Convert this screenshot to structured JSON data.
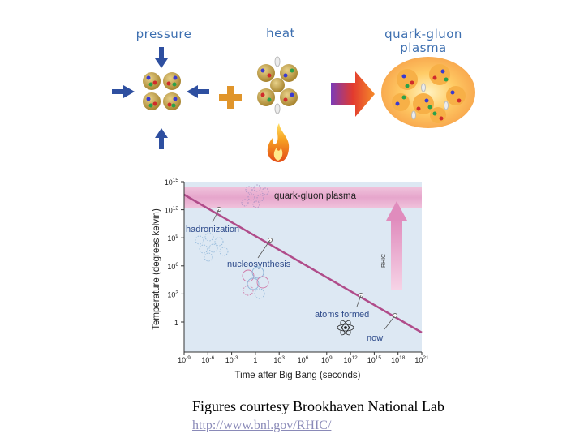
{
  "illustration": {
    "labels": {
      "pressure": "pressure",
      "heat": "heat",
      "qgp": "quark-gluon\nplasma"
    }
  },
  "chart": {
    "ylabel": "Temperature (degrees kelvin)",
    "xlabel": "Time after Big Bang (seconds)",
    "y_ticks": [
      {
        "base": "10",
        "exp": "15"
      },
      {
        "base": "10",
        "exp": "12"
      },
      {
        "base": "10",
        "exp": "9"
      },
      {
        "base": "10",
        "exp": "6"
      },
      {
        "base": "10",
        "exp": "3"
      },
      {
        "base": "1",
        "exp": ""
      }
    ],
    "x_ticks": [
      {
        "base": "10",
        "exp": "-9"
      },
      {
        "base": "10",
        "exp": "-6"
      },
      {
        "base": "10",
        "exp": "-3"
      },
      {
        "base": "1",
        "exp": ""
      },
      {
        "base": "10",
        "exp": "3"
      },
      {
        "base": "10",
        "exp": "6"
      },
      {
        "base": "10",
        "exp": "9"
      },
      {
        "base": "10",
        "exp": "12"
      },
      {
        "base": "10",
        "exp": "15"
      },
      {
        "base": "10",
        "exp": "18"
      },
      {
        "base": "10",
        "exp": "21"
      }
    ],
    "band_label": "quark-gluon plasma",
    "arrow_label": "RHIC",
    "annotations": {
      "hadronization": "hadronization",
      "nucleosynthesis": "nucleosynthesis",
      "atoms": "atoms formed",
      "now": "now"
    },
    "colors": {
      "band": "#e6a6cc",
      "line": "#b04c8a",
      "arrow": "#e9a3c9",
      "panel": "#dde8f3"
    }
  },
  "caption": {
    "text": "Figures courtesy Brookhaven National Lab",
    "link": "http://www.bnl.gov/RHIC/"
  }
}
